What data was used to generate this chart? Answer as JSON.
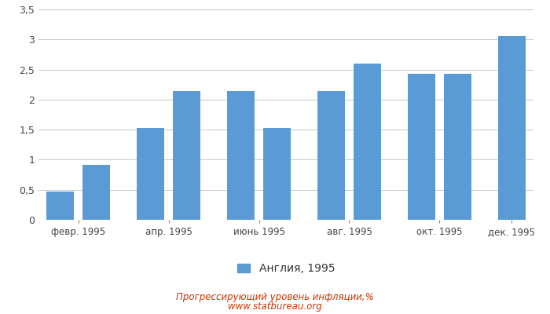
{
  "months": [
    {
      "label": "февр. 1995",
      "bars": [
        0.47,
        0.91
      ]
    },
    {
      "label": "апр. 1995",
      "bars": [
        1.53,
        2.14
      ]
    },
    {
      "label": "июнь 1995",
      "bars": [
        2.14,
        1.53
      ]
    },
    {
      "label": "авг. 1995",
      "bars": [
        2.14,
        2.6
      ]
    },
    {
      "label": "окт. 1995",
      "bars": [
        2.43,
        2.43
      ]
    },
    {
      "label": "дек. 1995",
      "bars": [
        3.06
      ]
    }
  ],
  "bar_color": "#5b9bd5",
  "ylim": [
    0,
    3.5
  ],
  "yticks": [
    0,
    0.5,
    1.0,
    1.5,
    2.0,
    2.5,
    3.0,
    3.5
  ],
  "ytick_labels": [
    "0",
    "0,5",
    "1",
    "1,5",
    "2",
    "2,5",
    "3",
    "3,5"
  ],
  "legend_label": "Англия, 1995",
  "footer_line1": "Прогрессирующий уровень инфляции,%",
  "footer_line2": "www.statbureau.org",
  "background_color": "#ffffff",
  "grid_color": "#c8c8c8"
}
